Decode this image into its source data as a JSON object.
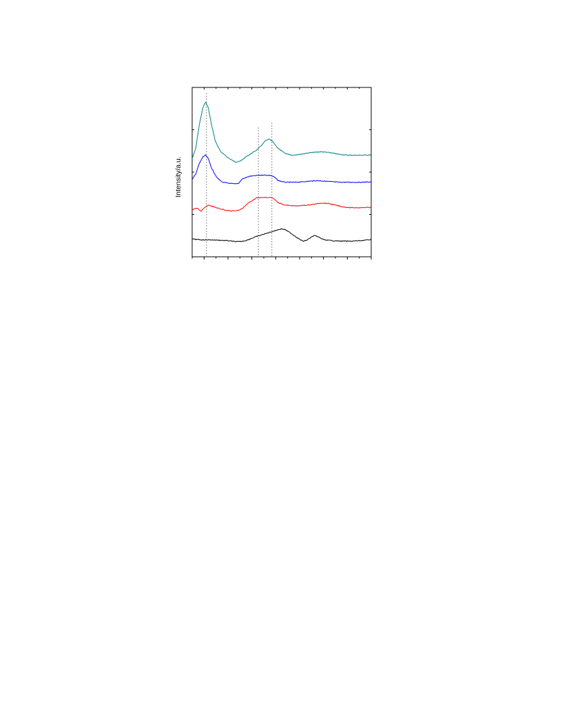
{
  "chart_data": {
    "type": "line",
    "title": "",
    "xlabel": "",
    "ylabel": "Intensity/a.u.",
    "x_range": [
      0,
      100
    ],
    "y_range": [
      0,
      100
    ],
    "grid": false,
    "legend": "none",
    "reference_lines_x": [
      8,
      37,
      44.5
    ],
    "series": [
      {
        "color": "#008080",
        "points": [
          [
            0,
            58
          ],
          [
            2,
            64
          ],
          [
            4,
            78
          ],
          [
            6,
            88
          ],
          [
            7.5,
            91.5
          ],
          [
            9,
            88
          ],
          [
            11,
            77
          ],
          [
            13,
            68
          ],
          [
            16,
            62
          ],
          [
            20,
            58.5
          ],
          [
            24,
            56
          ],
          [
            27,
            56.5
          ],
          [
            30,
            59
          ],
          [
            33,
            61
          ],
          [
            36,
            63
          ],
          [
            38,
            65
          ],
          [
            41,
            68.5
          ],
          [
            43,
            69.5
          ],
          [
            45,
            68
          ],
          [
            48,
            64
          ],
          [
            52,
            61
          ],
          [
            56,
            60
          ],
          [
            60,
            60.5
          ],
          [
            66,
            61.5
          ],
          [
            72,
            62
          ],
          [
            77,
            61.5
          ],
          [
            82,
            60.5
          ],
          [
            87,
            60
          ],
          [
            92,
            60
          ],
          [
            96,
            60
          ],
          [
            100,
            60.2
          ]
        ]
      },
      {
        "color": "#0000ff",
        "points": [
          [
            0,
            45.5
          ],
          [
            2,
            49
          ],
          [
            4,
            55
          ],
          [
            6,
            59
          ],
          [
            7.5,
            60
          ],
          [
            9,
            58
          ],
          [
            11,
            52
          ],
          [
            14,
            46.5
          ],
          [
            17,
            44
          ],
          [
            20,
            43.5
          ],
          [
            24,
            43
          ],
          [
            26,
            43.5
          ],
          [
            28,
            46
          ],
          [
            32,
            47.5
          ],
          [
            36,
            48
          ],
          [
            40,
            48.3
          ],
          [
            44,
            48
          ],
          [
            46,
            47
          ],
          [
            48,
            45
          ],
          [
            52,
            44
          ],
          [
            58,
            44
          ],
          [
            64,
            44.5
          ],
          [
            70,
            45
          ],
          [
            76,
            44.5
          ],
          [
            82,
            44
          ],
          [
            88,
            44
          ],
          [
            94,
            44
          ],
          [
            100,
            44.2
          ]
        ]
      },
      {
        "color": "#ff0000",
        "points": [
          [
            0,
            27.5
          ],
          [
            1.5,
            28.5
          ],
          [
            3,
            28.5
          ],
          [
            5,
            27
          ],
          [
            7,
            29
          ],
          [
            9,
            30.5
          ],
          [
            12,
            29.5
          ],
          [
            15,
            28.5
          ],
          [
            19,
            27.5
          ],
          [
            22,
            27
          ],
          [
            26,
            27.5
          ],
          [
            28,
            28.5
          ],
          [
            31,
            31.5
          ],
          [
            34,
            33.5
          ],
          [
            36,
            34.8
          ],
          [
            40,
            35
          ],
          [
            44,
            35
          ],
          [
            46,
            34
          ],
          [
            48,
            32
          ],
          [
            52,
            30.5
          ],
          [
            58,
            30
          ],
          [
            64,
            30.5
          ],
          [
            68,
            31
          ],
          [
            72,
            31.8
          ],
          [
            76,
            31.5
          ],
          [
            80,
            30.5
          ],
          [
            84,
            29.5
          ],
          [
            88,
            29
          ],
          [
            94,
            29
          ],
          [
            100,
            29.2
          ]
        ]
      },
      {
        "color": "#000000",
        "points": [
          [
            0,
            10.5
          ],
          [
            5,
            10
          ],
          [
            10,
            10
          ],
          [
            15,
            9.8
          ],
          [
            20,
            9.5
          ],
          [
            24,
            9
          ],
          [
            27,
            9
          ],
          [
            30,
            9.6
          ],
          [
            33,
            10.8
          ],
          [
            36,
            12
          ],
          [
            39,
            13
          ],
          [
            42,
            14
          ],
          [
            45,
            15
          ],
          [
            48,
            16
          ],
          [
            50,
            16.5
          ],
          [
            52,
            16
          ],
          [
            55,
            14
          ],
          [
            58,
            11.8
          ],
          [
            60,
            10.3
          ],
          [
            62,
            9.2
          ],
          [
            64,
            9.8
          ],
          [
            66,
            11.2
          ],
          [
            68,
            12.5
          ],
          [
            70,
            12
          ],
          [
            72,
            10.8
          ],
          [
            74,
            10
          ],
          [
            77,
            9.6
          ],
          [
            82,
            9.3
          ],
          [
            88,
            9.2
          ],
          [
            94,
            9.5
          ],
          [
            100,
            10.2
          ]
        ]
      }
    ]
  }
}
